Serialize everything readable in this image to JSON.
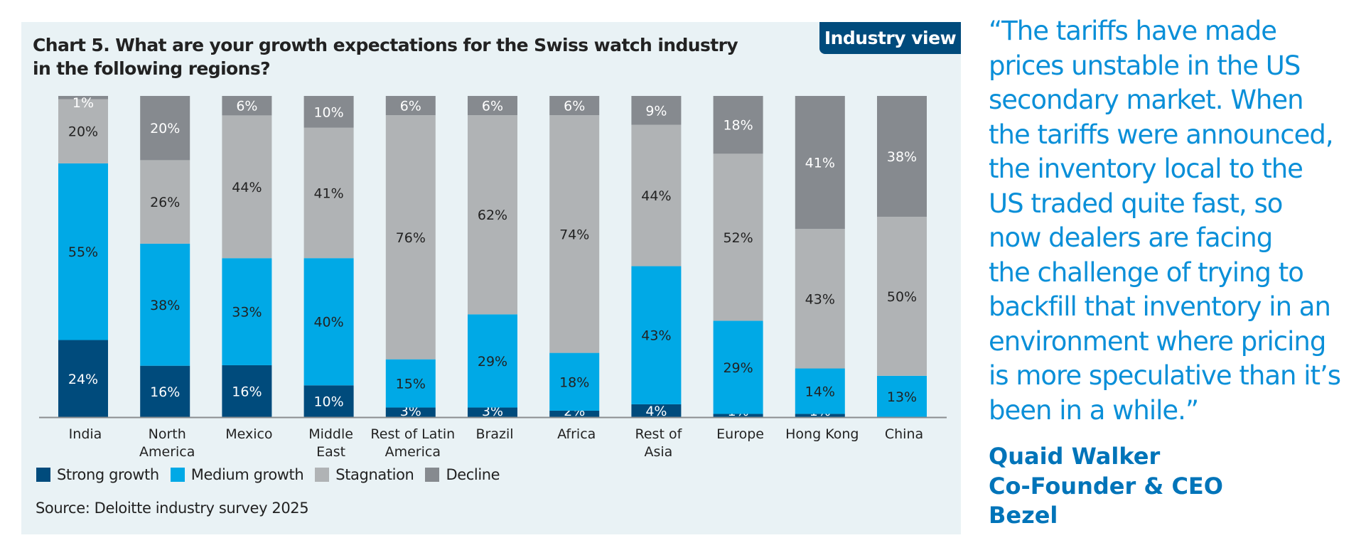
{
  "badge": "Industry view",
  "chart_data": {
    "type": "bar",
    "stacked": true,
    "title": "Chart 5. What are your growth expectations for the Swiss watch industry in the following regions?",
    "title_lines": [
      "Chart 5. What are your growth expectations for the Swiss watch industry",
      "in the following regions?"
    ],
    "categories": [
      [
        "India"
      ],
      [
        "North",
        "America"
      ],
      [
        "Mexico"
      ],
      [
        "Middle",
        "East"
      ],
      [
        "Rest of Latin",
        "America"
      ],
      [
        "Brazil"
      ],
      [
        "Africa"
      ],
      [
        "Rest of",
        "Asia"
      ],
      [
        "Europe"
      ],
      [
        "Hong Kong"
      ],
      [
        "China"
      ]
    ],
    "series": [
      {
        "name": "Strong growth",
        "color": "#004b7c",
        "label_color": "#ffffff",
        "values": [
          24,
          16,
          16,
          10,
          3,
          3,
          2,
          4,
          1,
          1,
          0
        ]
      },
      {
        "name": "Medium growth",
        "color": "#00a9e6",
        "label_color": "#222222",
        "values": [
          55,
          38,
          33,
          40,
          15,
          29,
          18,
          43,
          29,
          14,
          13
        ]
      },
      {
        "name": "Stagnation",
        "color": "#b0b3b5",
        "label_color": "#222222",
        "values": [
          20,
          26,
          44,
          41,
          76,
          62,
          74,
          44,
          52,
          43,
          50
        ]
      },
      {
        "name": "Decline",
        "color": "#868a8f",
        "label_color": "#ffffff",
        "values": [
          1,
          20,
          6,
          10,
          6,
          6,
          6,
          9,
          18,
          41,
          38
        ]
      }
    ],
    "unit": "%",
    "ylim": [
      0,
      100
    ],
    "legend_position": "bottom-left",
    "grid": false
  },
  "source": "Source: Deloitte industry survey 2025",
  "quote": {
    "lines": [
      "“The tariffs have made",
      "prices unstable in the US",
      "secondary market. When",
      "the tariffs were announced,",
      "the inventory local to the",
      "US traded quite fast, so",
      "now dealers are facing",
      "the challenge of trying to",
      "backfill that inventory in an",
      "environment where pricing",
      "is more speculative than it’s",
      "been in a while.”"
    ],
    "name": "Quaid Walker",
    "role": "Co-Founder & CEO",
    "company": "Bezel"
  }
}
